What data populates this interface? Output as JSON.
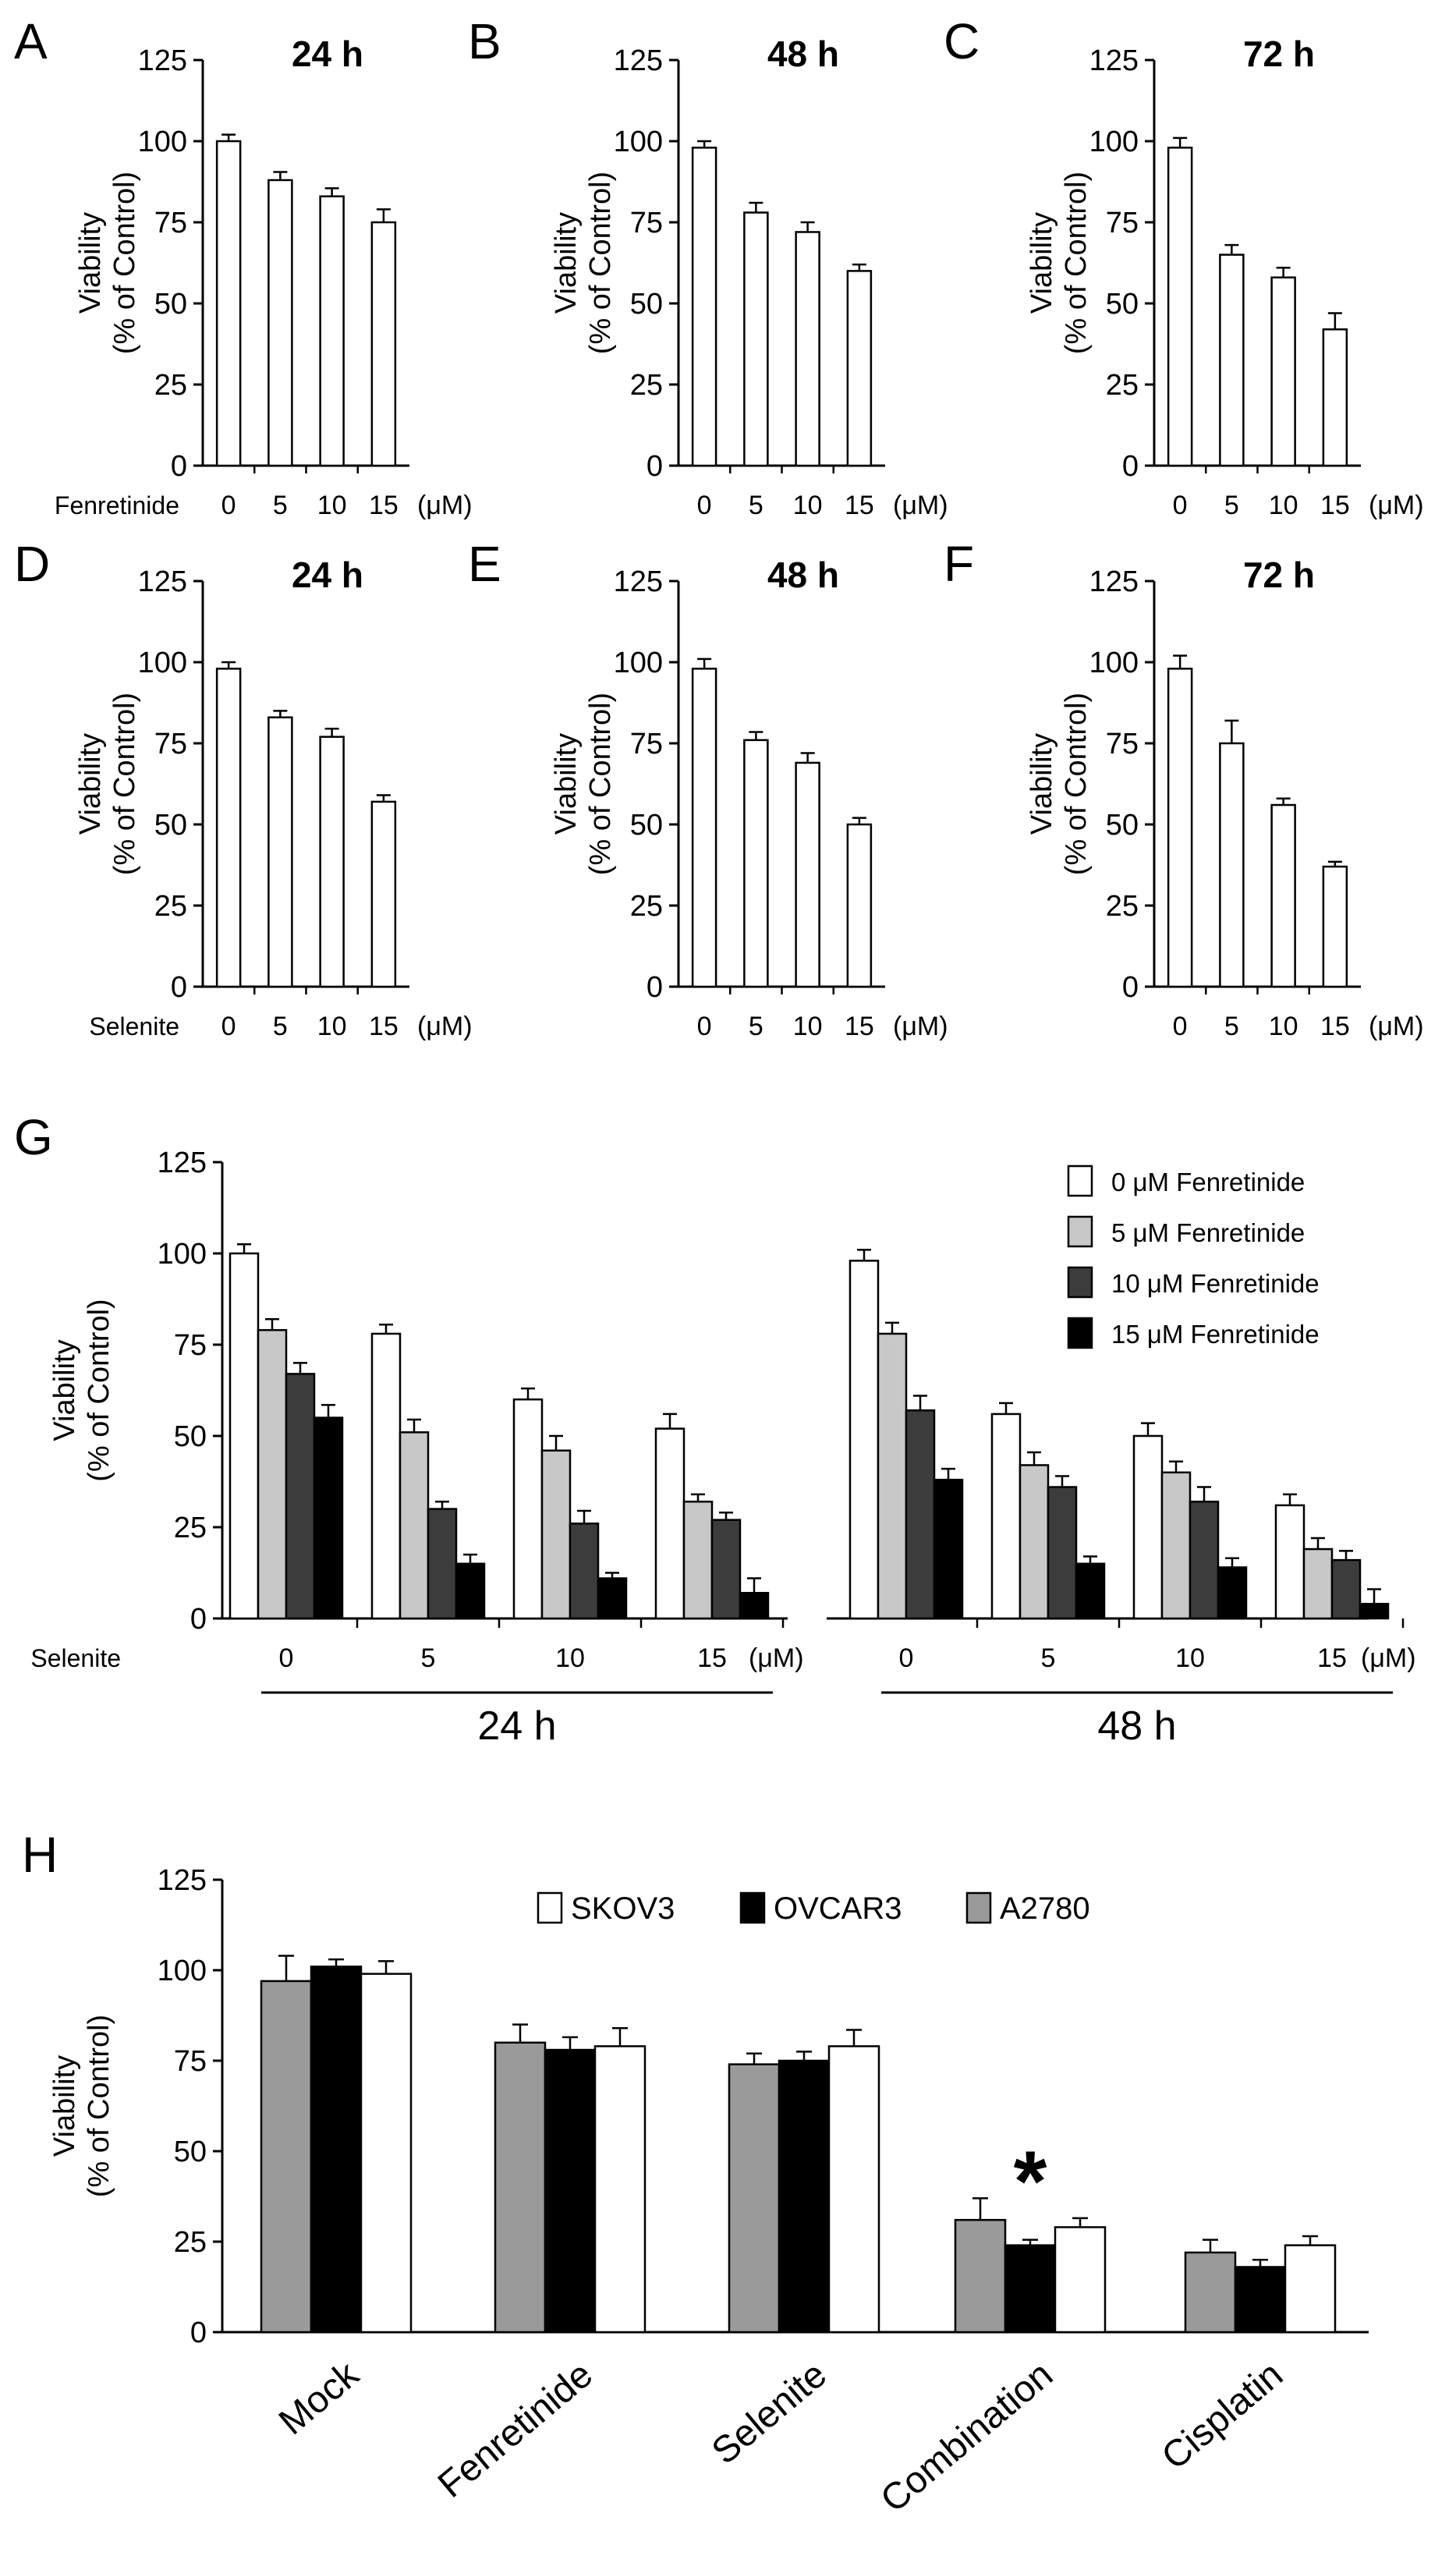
{
  "colors": {
    "white": "#ffffff",
    "light_gray": "#c8c8c8",
    "gray": "#9a9a9a",
    "dark_gray": "#3c3c3c",
    "black": "#000000"
  },
  "chart_data": [
    {
      "panel": "A",
      "type": "bar",
      "title": "24 h",
      "ylabel": [
        "Viability",
        "(% of Control)"
      ],
      "treatment_label": "Fenretinide",
      "unit": "(μM)",
      "ylim": [
        0,
        125
      ],
      "yticks": [
        0,
        25,
        50,
        75,
        100,
        125
      ],
      "categories": [
        "0",
        "5",
        "10",
        "15"
      ],
      "values": [
        100,
        88,
        83,
        75
      ],
      "errors": [
        2,
        2.5,
        2.5,
        4
      ]
    },
    {
      "panel": "B",
      "type": "bar",
      "title": "48 h",
      "ylabel": [
        "Viability",
        "(% of Control)"
      ],
      "treatment_label": "",
      "unit": "(μM)",
      "ylim": [
        0,
        125
      ],
      "yticks": [
        0,
        25,
        50,
        75,
        100,
        125
      ],
      "categories": [
        "0",
        "5",
        "10",
        "15"
      ],
      "values": [
        98,
        78,
        72,
        60
      ],
      "errors": [
        2,
        3,
        3,
        2
      ]
    },
    {
      "panel": "C",
      "type": "bar",
      "title": "72 h",
      "ylabel": [
        "Viability",
        "(% of Control)"
      ],
      "treatment_label": "",
      "unit": "(μM)",
      "ylim": [
        0,
        125
      ],
      "yticks": [
        0,
        25,
        50,
        75,
        100,
        125
      ],
      "categories": [
        "0",
        "5",
        "10",
        "15"
      ],
      "values": [
        98,
        65,
        58,
        42
      ],
      "errors": [
        3,
        3,
        3,
        5
      ]
    },
    {
      "panel": "D",
      "type": "bar",
      "title": "24 h",
      "ylabel": [
        "Viability",
        "(% of Control)"
      ],
      "treatment_label": "Selenite",
      "unit": "(μM)",
      "ylim": [
        0,
        125
      ],
      "yticks": [
        0,
        25,
        50,
        75,
        100,
        125
      ],
      "categories": [
        "0",
        "5",
        "10",
        "15"
      ],
      "values": [
        98,
        83,
        77,
        57
      ],
      "errors": [
        2,
        2,
        2.5,
        2
      ]
    },
    {
      "panel": "E",
      "type": "bar",
      "title": "48 h",
      "ylabel": [
        "Viability",
        "(% of Control)"
      ],
      "treatment_label": "",
      "unit": "(μM)",
      "ylim": [
        0,
        125
      ],
      "yticks": [
        0,
        25,
        50,
        75,
        100,
        125
      ],
      "categories": [
        "0",
        "5",
        "10",
        "15"
      ],
      "values": [
        98,
        76,
        69,
        50
      ],
      "errors": [
        3,
        2.5,
        3,
        2
      ]
    },
    {
      "panel": "F",
      "type": "bar",
      "title": "72 h",
      "ylabel": [
        "Viability",
        "(% of Control)"
      ],
      "treatment_label": "",
      "unit": "(μM)",
      "ylim": [
        0,
        125
      ],
      "yticks": [
        0,
        25,
        50,
        75,
        100,
        125
      ],
      "categories": [
        "0",
        "5",
        "10",
        "15"
      ],
      "values": [
        98,
        75,
        56,
        37
      ],
      "errors": [
        4,
        7,
        2,
        1.5
      ]
    },
    {
      "panel": "G",
      "type": "bar",
      "ylabel": [
        "Viability",
        "(% of Control)"
      ],
      "treatment_label": "Selenite",
      "unit": "(μM)",
      "ylim": [
        0,
        125
      ],
      "yticks": [
        0,
        25,
        50,
        75,
        100,
        125
      ],
      "groups": [
        {
          "label": "24 h",
          "categories": [
            "0",
            "5",
            "10",
            "15"
          ]
        },
        {
          "label": "48 h",
          "categories": [
            "0",
            "5",
            "10",
            "15"
          ]
        }
      ],
      "series": [
        {
          "name": "0 μM Fenretinide",
          "color": "#ffffff",
          "values": [
            100,
            78,
            60,
            52,
            98,
            56,
            50,
            31
          ],
          "errors": [
            2.5,
            2.5,
            3,
            4,
            3,
            3,
            3.5,
            3
          ]
        },
        {
          "name": "5 μM Fenretinide",
          "color": "#c8c8c8",
          "values": [
            79,
            51,
            46,
            32,
            78,
            42,
            40,
            19
          ],
          "errors": [
            3,
            3.5,
            4,
            2,
            3,
            3.5,
            3,
            3
          ]
        },
        {
          "name": "10 μM Fenretinide",
          "color": "#3c3c3c",
          "values": [
            67,
            30,
            26,
            27,
            57,
            36,
            32,
            16
          ],
          "errors": [
            3,
            2,
            3.5,
            2,
            4,
            3,
            4,
            2.5
          ]
        },
        {
          "name": "15 μM Fenretinide",
          "color": "#000000",
          "values": [
            55,
            15,
            11,
            7,
            38,
            15,
            14,
            4
          ],
          "errors": [
            3.5,
            2.5,
            1.5,
            4,
            3,
            2,
            2.5,
            4
          ]
        }
      ]
    },
    {
      "panel": "H",
      "type": "bar",
      "ylabel": [
        "Viability",
        "(% of Control)"
      ],
      "ylim": [
        0,
        125
      ],
      "yticks": [
        0,
        25,
        50,
        75,
        100,
        125
      ],
      "categories": [
        "Mock",
        "Fenretinide",
        "Selenite",
        "Combination",
        "Cisplatin"
      ],
      "legend": [
        {
          "name": "SKOV3",
          "color": "#ffffff"
        },
        {
          "name": "OVCAR3",
          "color": "#000000"
        },
        {
          "name": "A2780",
          "color": "#9a9a9a"
        }
      ],
      "series": [
        {
          "name": "A2780",
          "color": "#9a9a9a",
          "values": [
            97,
            80,
            74,
            31,
            22
          ],
          "errors": [
            7,
            5,
            3,
            6,
            3.5
          ]
        },
        {
          "name": "OVCAR3",
          "color": "#000000",
          "values": [
            101,
            78,
            75,
            24,
            18
          ],
          "errors": [
            2,
            3.5,
            2.5,
            1.5,
            2
          ]
        },
        {
          "name": "SKOV3",
          "color": "#ffffff",
          "values": [
            99,
            79,
            79,
            29,
            24
          ],
          "errors": [
            3.5,
            5,
            4.5,
            2.5,
            2.5
          ]
        }
      ],
      "annotation": "*",
      "annotation_category": "Combination"
    }
  ]
}
